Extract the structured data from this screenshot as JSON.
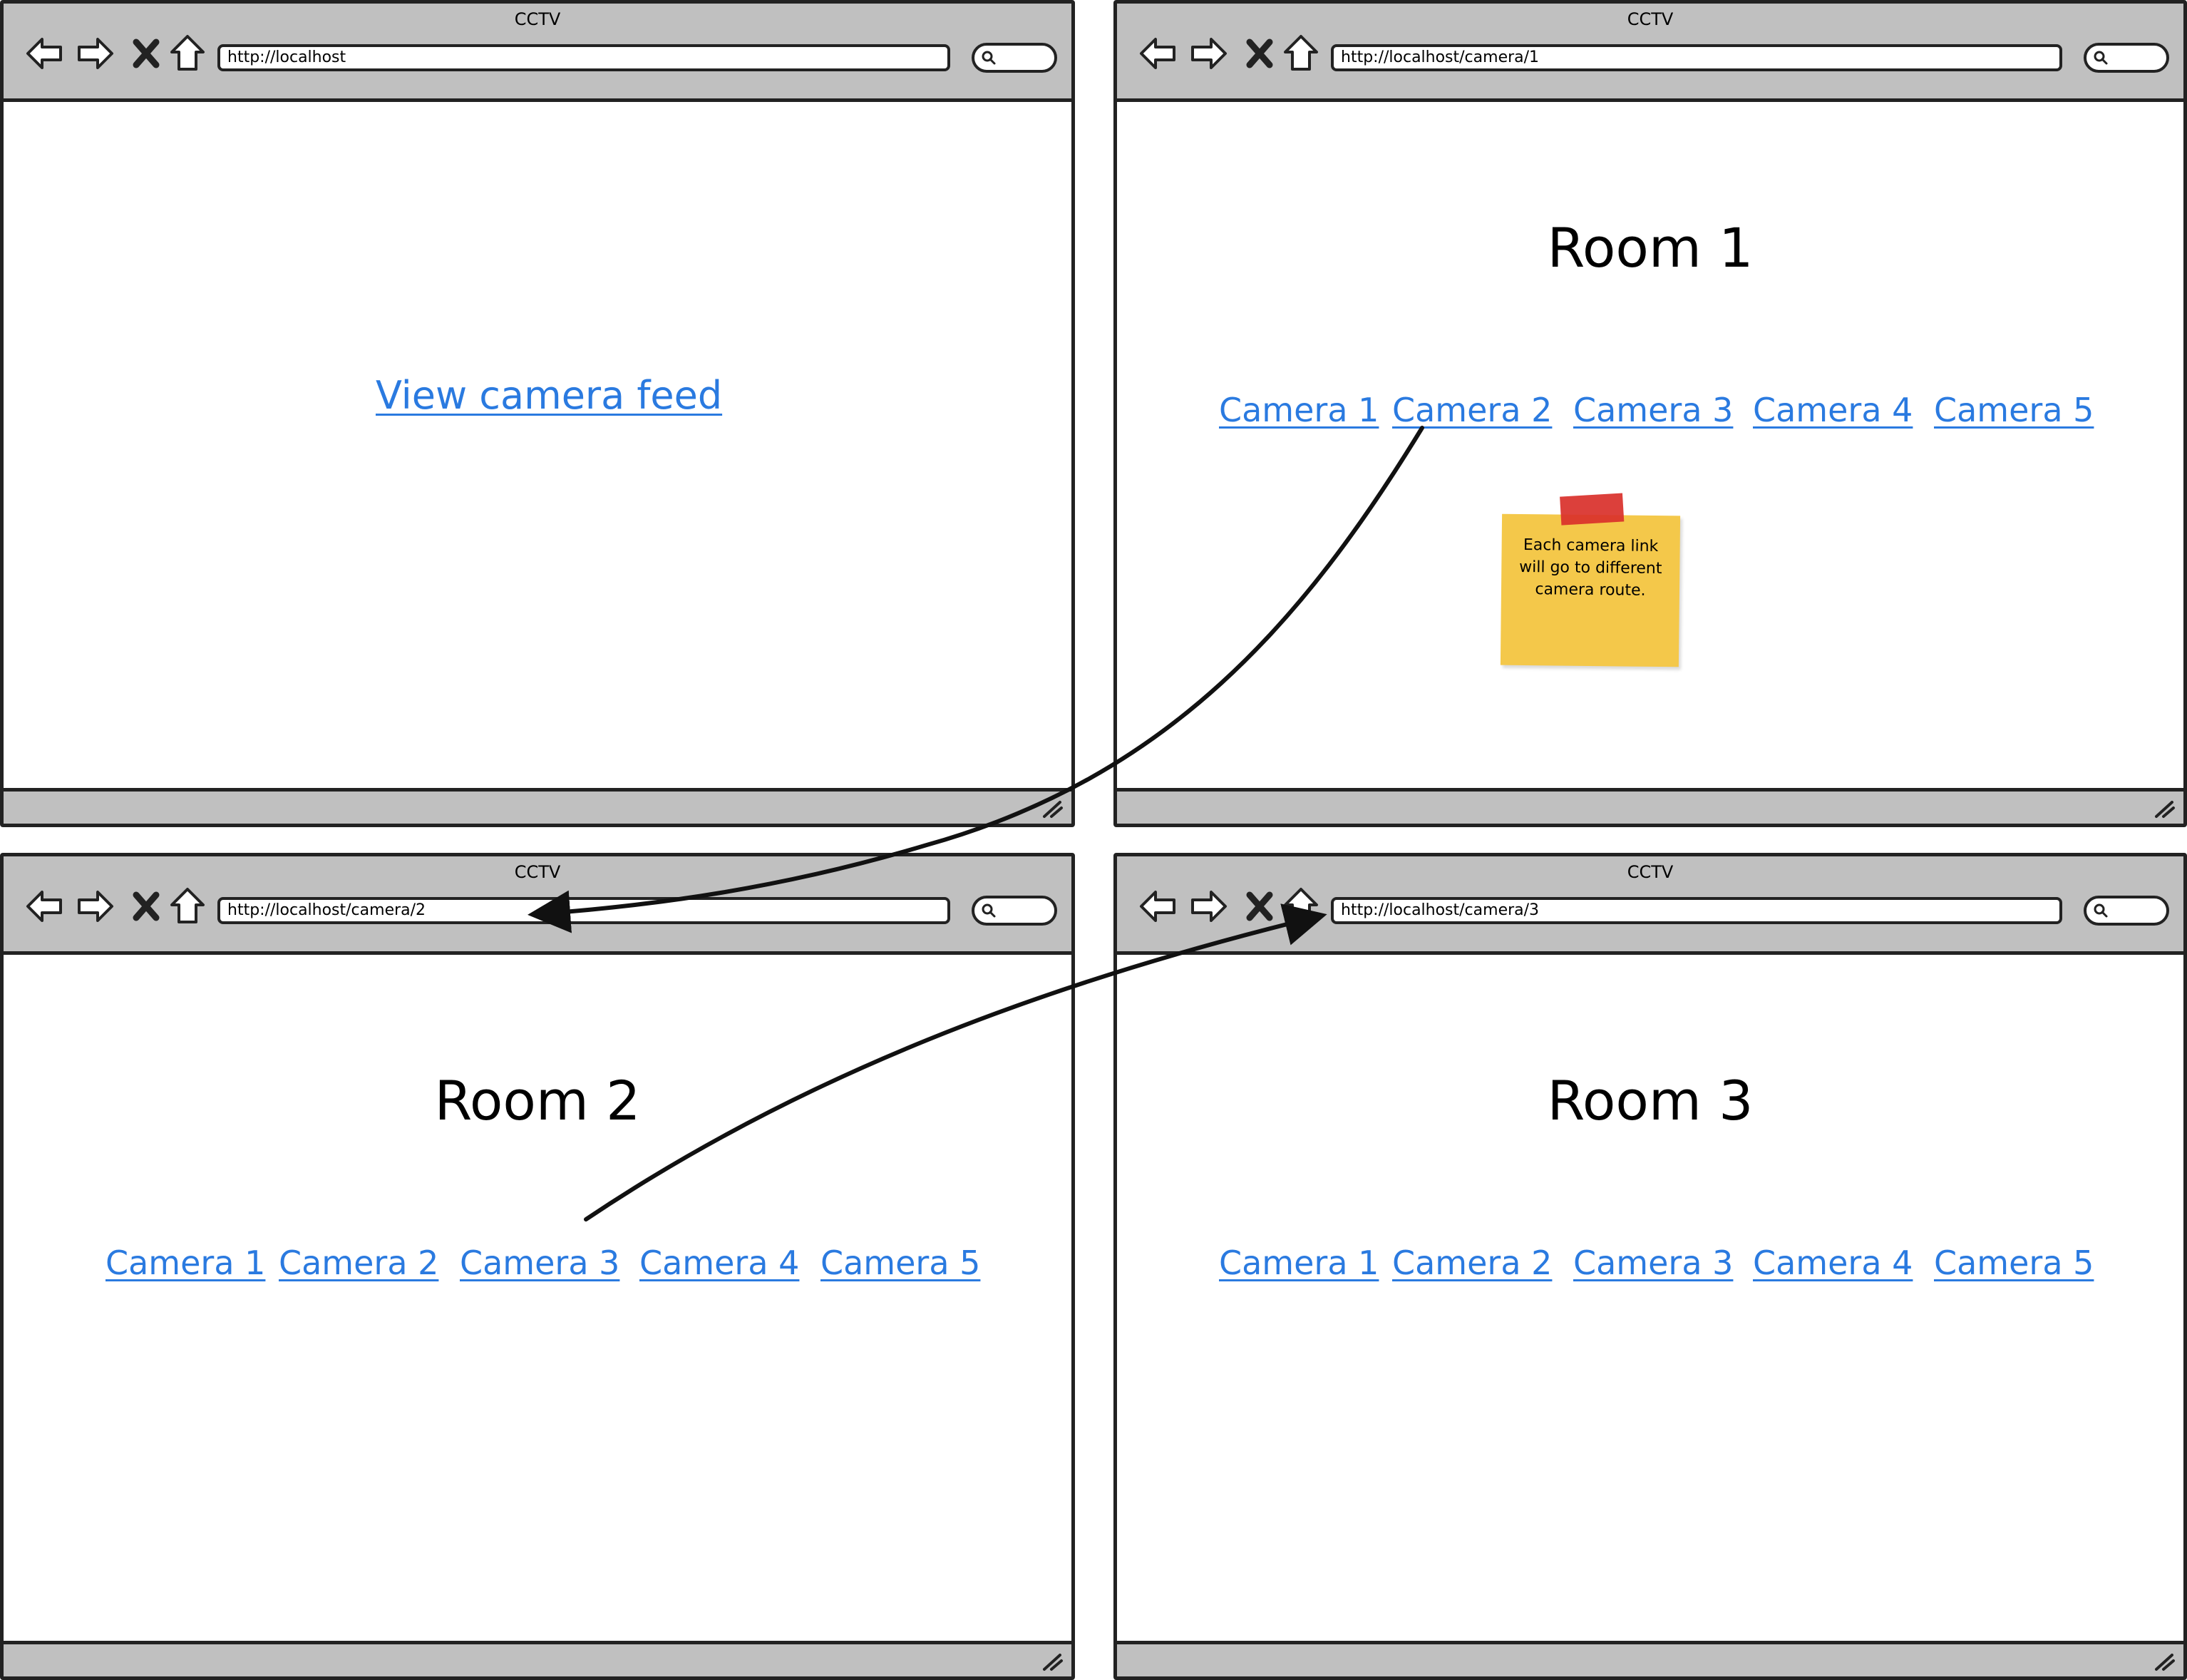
{
  "windows": [
    {
      "title": "CCTV",
      "url": "http://localhost",
      "link_label": "View camera feed"
    },
    {
      "title": "CCTV",
      "url": "http://localhost/camera/1",
      "heading": "Room 1",
      "camera_links": [
        "Camera 1",
        "Camera 2",
        "Camera 3",
        "Camera 4",
        "Camera 5"
      ]
    },
    {
      "title": "CCTV",
      "url": "http://localhost/camera/2",
      "heading": "Room 2",
      "camera_links": [
        "Camera 1",
        "Camera 2",
        "Camera 3",
        "Camera 4",
        "Camera 5"
      ]
    },
    {
      "title": "CCTV",
      "url": "http://localhost/camera/3",
      "heading": "Room 3",
      "camera_links": [
        "Camera 1",
        "Camera 2",
        "Camera 3",
        "Camera 4",
        "Camera 5"
      ]
    }
  ],
  "sticky_note": {
    "lines": [
      "Each camera link",
      "will go to different",
      "camera route."
    ]
  },
  "colors": {
    "link": "#2a7ae0",
    "chrome": "#c0c0c0",
    "sticky": "#f4c84a",
    "tape": "#d9302a"
  }
}
